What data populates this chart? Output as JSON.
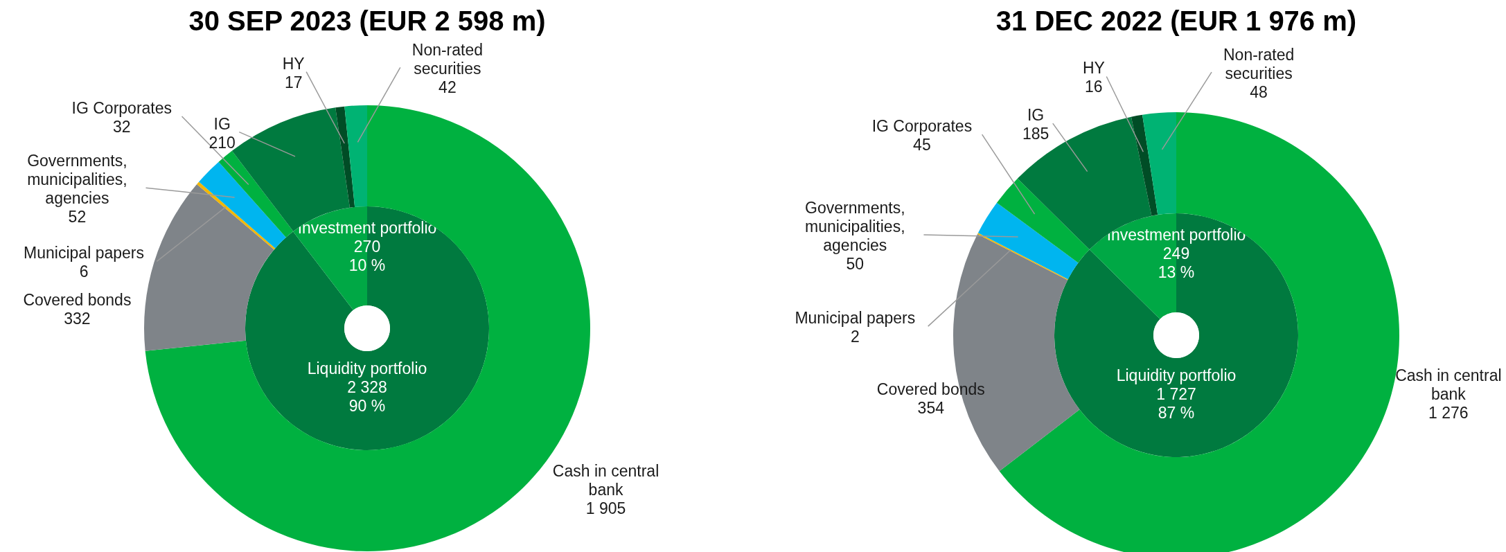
{
  "chart_data": [
    {
      "type": "donut",
      "title": "30 SEP 2023 (EUR 2 598 m)",
      "categories": [
        "Cash in central bank",
        "Covered bonds",
        "Municipal papers",
        "Governments, municipalities, agencies",
        "IG Corporates",
        "IG",
        "HY",
        "Non-rated securities"
      ],
      "values": [
        1905,
        332,
        6,
        52,
        32,
        210,
        17,
        42
      ],
      "colors": [
        "#00b140",
        "#7f8489",
        "#f2b705",
        "#00b5ef",
        "#00b140",
        "#007a3f",
        "#004d26",
        "#00b373"
      ],
      "value_labels": [
        "1 905",
        "332",
        "6",
        "52",
        "32",
        "210",
        "17",
        "42"
      ]
    },
    {
      "type": "donut",
      "categories": [
        "Liquidity portfolio",
        "Investment portfolio"
      ],
      "values": [
        2328,
        270
      ],
      "colors": [
        "#007a3f",
        "#00a845"
      ],
      "value_labels": [
        "2 328\n90 %",
        "270\n10 %"
      ]
    },
    {
      "type": "donut",
      "title": "31 DEC 2022 (EUR 1 976 m)",
      "categories": [
        "Cash in central bank",
        "Covered bonds",
        "Municipal papers",
        "Governments, municipalities, agencies",
        "IG Corporates",
        "IG",
        "HY",
        "Non-rated securities"
      ],
      "values": [
        1276,
        354,
        2,
        50,
        45,
        185,
        16,
        48
      ],
      "colors": [
        "#00b140",
        "#7f8489",
        "#f2b705",
        "#00b5ef",
        "#00b140",
        "#007a3f",
        "#004d26",
        "#00b373"
      ],
      "value_labels": [
        "1 276",
        "354",
        "2",
        "50",
        "45",
        "185",
        "16",
        "48"
      ]
    },
    {
      "type": "donut",
      "categories": [
        "Liquidity portfolio",
        "Investment portfolio"
      ],
      "values": [
        1727,
        249
      ],
      "colors": [
        "#007a3f",
        "#00a845"
      ],
      "value_labels": [
        "1 727\n87 %",
        "249\n13 %"
      ]
    }
  ]
}
